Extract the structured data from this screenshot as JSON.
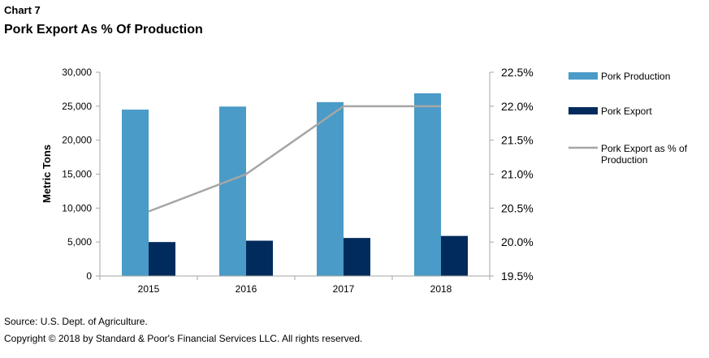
{
  "header": {
    "chart_number": "Chart 7",
    "title": "Pork Export As % Of Production"
  },
  "footer": {
    "source": "Source: U.S. Dept. of Agriculture.",
    "copyright": "Copyright © 2018 by Standard & Poor's Financial Services LLC. All rights reserved."
  },
  "colors": {
    "production": "#4a9bc7",
    "export": "#002b5c",
    "percent_line": "#a6a6a6",
    "axis": "#a6a6a6"
  },
  "chart_data": {
    "type": "bar",
    "title": "Pork Export As % Of Production",
    "categories": [
      "2015",
      "2016",
      "2017",
      "2018"
    ],
    "series": [
      {
        "name": "Pork Production",
        "type": "bar",
        "axis": "left",
        "values": [
          24500,
          24950,
          25600,
          26900
        ]
      },
      {
        "name": "Pork Export",
        "type": "bar",
        "axis": "left",
        "values": [
          5000,
          5200,
          5600,
          5900
        ]
      },
      {
        "name": "Pork Export as % of Production",
        "type": "line",
        "axis": "right",
        "values": [
          20.45,
          21.0,
          22.0,
          22.0
        ]
      }
    ],
    "ylabel": "Metric Tons",
    "ylim": [
      0,
      30000
    ],
    "yticks": [
      "0",
      "5,000",
      "10,000",
      "15,000",
      "20,000",
      "25,000",
      "30,000"
    ],
    "y2lim": [
      19.5,
      22.5
    ],
    "y2ticks": [
      "19.5%",
      "20.0%",
      "20.5%",
      "21.0%",
      "21.5%",
      "22.0%",
      "22.5%"
    ],
    "legend": {
      "placement": "right",
      "entries": [
        {
          "lines": [
            "Pork Production"
          ]
        },
        {
          "lines": [
            "Pork Export"
          ]
        },
        {
          "lines": [
            "Pork Export as % of",
            "Production"
          ]
        }
      ]
    },
    "grid": false
  }
}
